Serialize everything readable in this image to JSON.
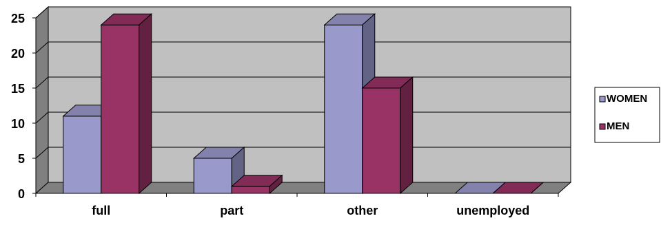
{
  "chart_data": {
    "type": "bar",
    "title": "",
    "xlabel": "",
    "ylabel": "",
    "categories": [
      "full",
      "part",
      "other",
      "unemployed"
    ],
    "series": [
      {
        "name": "WOMEN",
        "values": [
          11,
          5,
          24,
          0
        ],
        "color": "#9999cc"
      },
      {
        "name": "MEN",
        "values": [
          24,
          1,
          15,
          0
        ],
        "color": "#993366"
      }
    ],
    "ylim": [
      0,
      25
    ],
    "yticks": [
      "0",
      "5",
      "10",
      "15",
      "20",
      "25"
    ],
    "grid": true,
    "legend": "right",
    "three_d": true,
    "wall_color": "#c0c0c0"
  }
}
